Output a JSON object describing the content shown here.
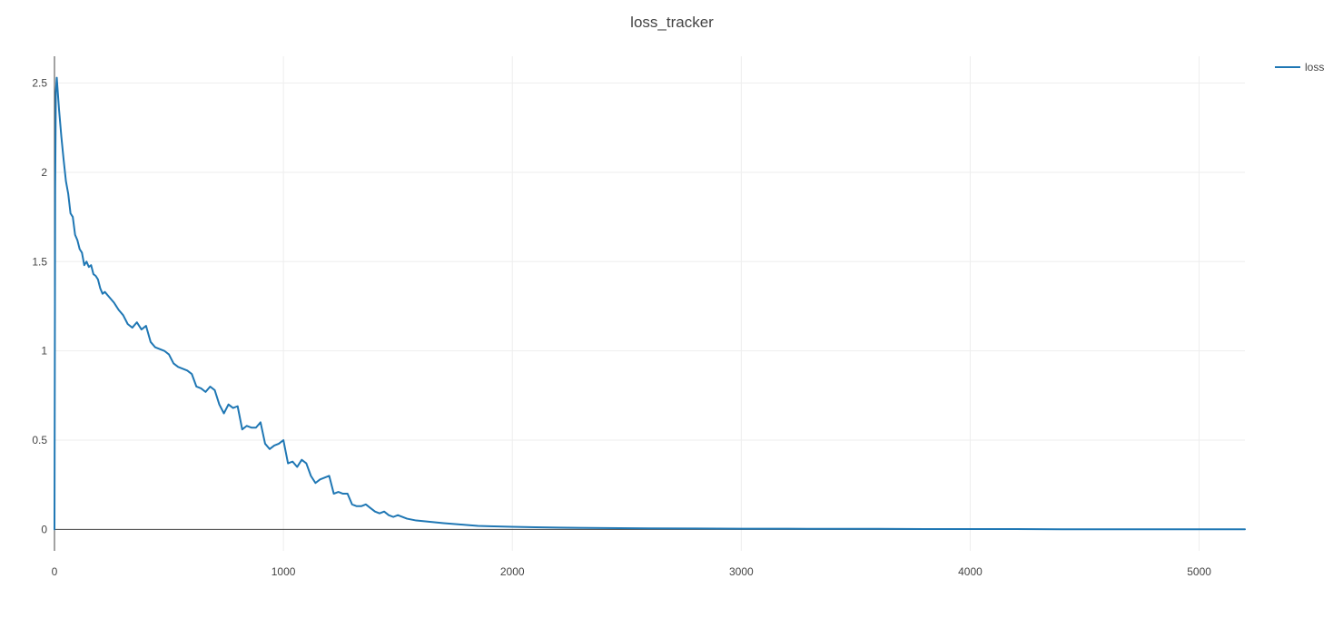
{
  "chart_data": {
    "type": "line",
    "title": "loss_tracker",
    "xlabel": "",
    "ylabel": "",
    "xlim": [
      0,
      5200
    ],
    "ylim": [
      -0.12,
      2.65
    ],
    "x_ticks": [
      0,
      1000,
      2000,
      3000,
      4000,
      5000
    ],
    "y_ticks": [
      0,
      0.5,
      1,
      1.5,
      2,
      2.5
    ],
    "x_tick_labels": [
      "0",
      "1000",
      "2000",
      "3000",
      "4000",
      "5000"
    ],
    "y_tick_labels": [
      "0",
      "0.5",
      "1",
      "1.5",
      "2",
      "2.5"
    ],
    "grid": true,
    "legend_position": "top-right",
    "series": [
      {
        "name": "loss",
        "color": "#1f77b4",
        "x": [
          0,
          3,
          6,
          10,
          20,
          30,
          40,
          50,
          60,
          70,
          80,
          90,
          100,
          110,
          120,
          130,
          140,
          150,
          160,
          170,
          180,
          190,
          200,
          210,
          220,
          240,
          260,
          280,
          300,
          320,
          340,
          360,
          380,
          400,
          420,
          440,
          460,
          480,
          500,
          520,
          540,
          560,
          580,
          600,
          620,
          640,
          660,
          680,
          700,
          720,
          740,
          760,
          780,
          800,
          820,
          840,
          860,
          880,
          900,
          920,
          940,
          960,
          980,
          1000,
          1020,
          1040,
          1060,
          1080,
          1100,
          1120,
          1140,
          1160,
          1180,
          1200,
          1220,
          1240,
          1260,
          1280,
          1300,
          1320,
          1340,
          1360,
          1380,
          1400,
          1420,
          1440,
          1460,
          1480,
          1500,
          1540,
          1580,
          1620,
          1660,
          1700,
          1750,
          1800,
          1850,
          1900,
          2000,
          2100,
          2200,
          2400,
          2600,
          2800,
          3000,
          3200,
          3400,
          3600,
          3800,
          4000,
          4200,
          4400,
          4600,
          4800,
          5000,
          5200
        ],
        "values": [
          0.0,
          1.9,
          2.45,
          2.53,
          2.35,
          2.2,
          2.07,
          1.95,
          1.88,
          1.77,
          1.75,
          1.65,
          1.62,
          1.57,
          1.55,
          1.48,
          1.5,
          1.47,
          1.48,
          1.43,
          1.42,
          1.4,
          1.35,
          1.32,
          1.33,
          1.3,
          1.27,
          1.23,
          1.2,
          1.15,
          1.13,
          1.16,
          1.12,
          1.14,
          1.05,
          1.02,
          1.01,
          1.0,
          0.98,
          0.93,
          0.91,
          0.9,
          0.89,
          0.87,
          0.8,
          0.79,
          0.77,
          0.8,
          0.78,
          0.7,
          0.65,
          0.7,
          0.68,
          0.69,
          0.56,
          0.58,
          0.57,
          0.57,
          0.6,
          0.48,
          0.45,
          0.47,
          0.48,
          0.5,
          0.37,
          0.38,
          0.35,
          0.39,
          0.37,
          0.3,
          0.26,
          0.28,
          0.29,
          0.3,
          0.2,
          0.21,
          0.2,
          0.2,
          0.14,
          0.13,
          0.13,
          0.14,
          0.12,
          0.1,
          0.09,
          0.1,
          0.08,
          0.07,
          0.08,
          0.06,
          0.05,
          0.045,
          0.04,
          0.035,
          0.03,
          0.025,
          0.02,
          0.018,
          0.015,
          0.012,
          0.01,
          0.008,
          0.006,
          0.005,
          0.004,
          0.004,
          0.003,
          0.003,
          0.002,
          0.002,
          0.002,
          0.001,
          0.001,
          0.001,
          0.001,
          0.001
        ]
      }
    ]
  }
}
